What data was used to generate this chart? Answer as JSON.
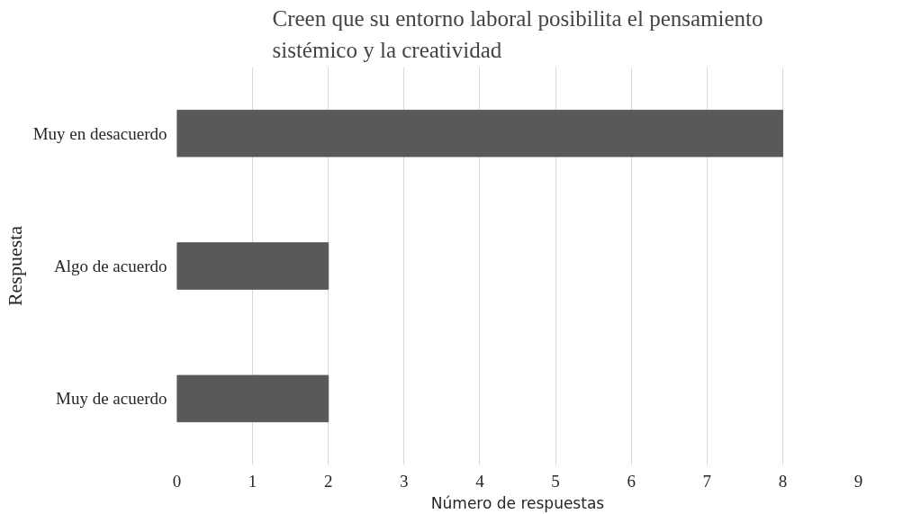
{
  "chart_data": {
    "type": "bar",
    "orientation": "horizontal",
    "title": "Creen que su entorno laboral posibilita el pensamiento\nsistémico y la creatividad",
    "xlabel": "Número de respuestas",
    "ylabel": "Respuesta",
    "categories": [
      "Muy en desacuerdo",
      "Algo de acuerdo",
      "Muy de acuerdo"
    ],
    "values": [
      8,
      2,
      2
    ],
    "color": "#595959",
    "xlim": [
      0,
      9
    ],
    "xticks": [
      0,
      1,
      2,
      3,
      4,
      5,
      6,
      7,
      8,
      9
    ],
    "grid": "x"
  }
}
